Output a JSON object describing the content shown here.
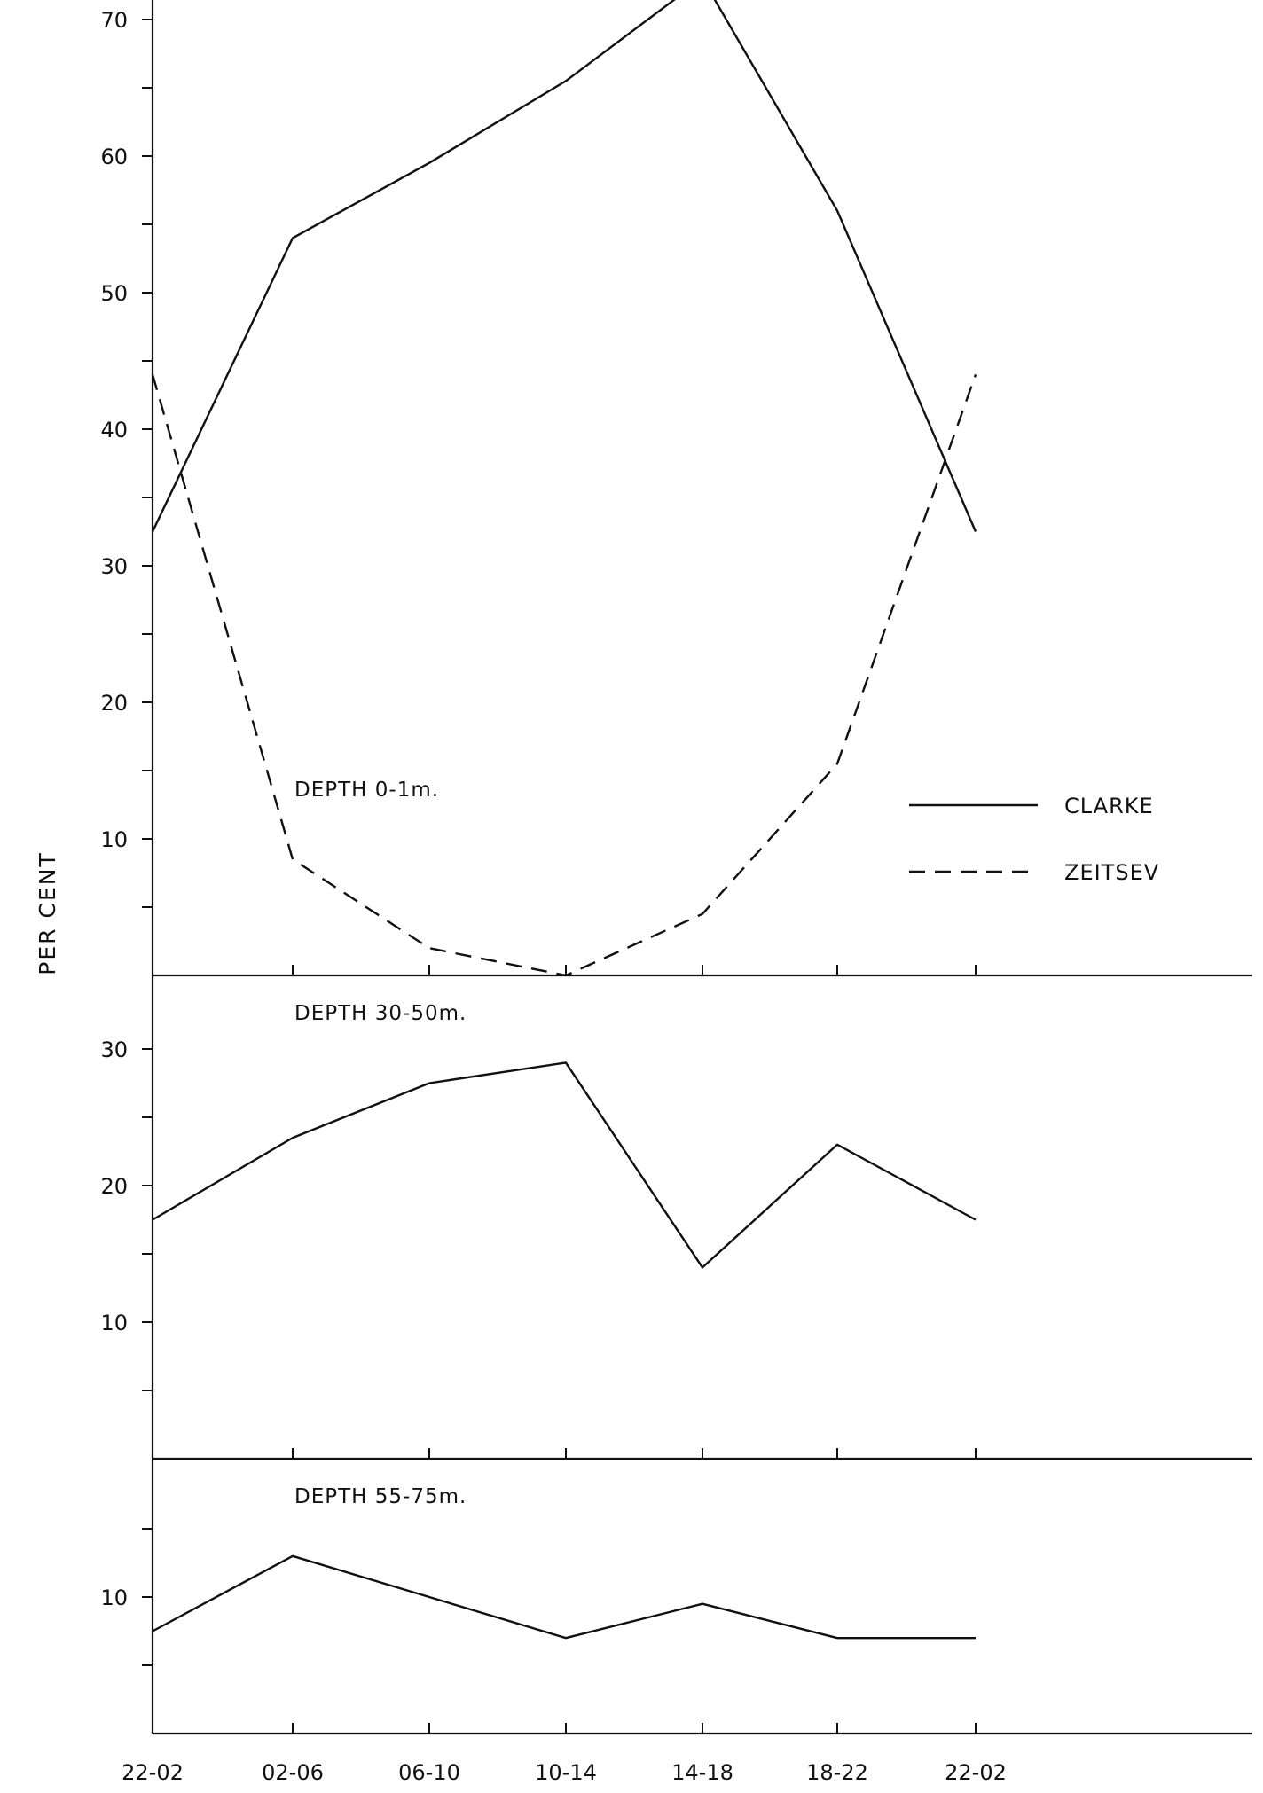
{
  "chart_data": {
    "type": "line",
    "ylabel": "PER CENT",
    "categories": [
      "22-02",
      "02-06",
      "06-10",
      "10-14",
      "14-18",
      "18-22",
      "22-02"
    ],
    "legend": [
      {
        "name": "CLARKE",
        "style": "solid"
      },
      {
        "name": "ZEITSEV",
        "style": "dashed"
      }
    ],
    "line_color": "#111111",
    "panels": [
      {
        "id": "surface",
        "label": "DEPTH  0-1m.",
        "ylim": [
          0,
          70
        ],
        "yticks": [
          10,
          20,
          30,
          40,
          50,
          60,
          70
        ],
        "yticks_unlabeled": [
          5,
          15,
          25,
          35,
          45,
          55,
          65
        ],
        "series": [
          {
            "name": "CLARKE",
            "style": "solid",
            "values": [
              32.5,
              54,
              59.5,
              65.5,
              73,
              56,
              32.5
            ]
          },
          {
            "name": "ZEITSEV",
            "style": "dashed",
            "values": [
              44,
              8.5,
              2,
              0,
              4.5,
              15.5,
              44
            ]
          }
        ]
      },
      {
        "id": "mid",
        "label": "DEPTH  30-50m.",
        "ylim": [
          0,
          35
        ],
        "yticks": [
          10,
          20,
          30
        ],
        "yticks_unlabeled": [
          5,
          15,
          25
        ],
        "series": [
          {
            "name": "CLARKE",
            "style": "solid",
            "values": [
              17.5,
              23.5,
              27.5,
              29,
              14,
              23,
              17.5
            ]
          }
        ]
      },
      {
        "id": "deep",
        "label": "DEPTH  55-75m.",
        "ylim": [
          0,
          18
        ],
        "yticks": [
          10
        ],
        "yticks_unlabeled": [
          5,
          15
        ],
        "series": [
          {
            "name": "CLARKE",
            "style": "solid",
            "values": [
              7.5,
              13,
              10,
              7,
              9.5,
              7,
              7
            ]
          }
        ]
      }
    ]
  }
}
